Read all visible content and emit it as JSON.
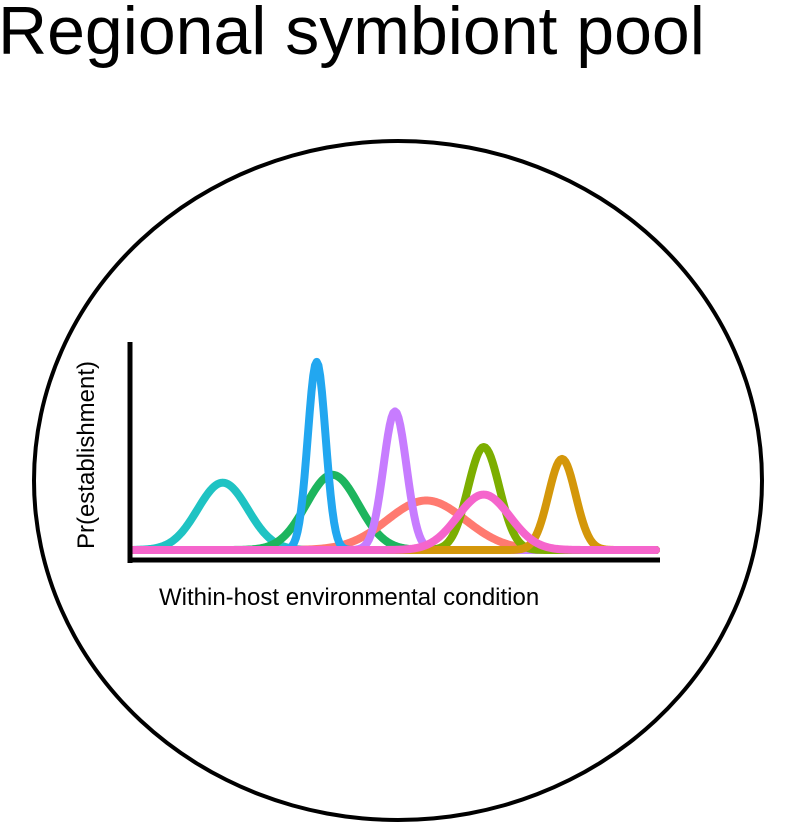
{
  "diagram": {
    "title": "Regional symbiont pool",
    "xlabel": "Within-host environmental condition",
    "ylabel": "Pr(establishment)"
  },
  "chart_data": {
    "type": "line",
    "x_range": [
      0,
      1
    ],
    "y_range": [
      0,
      1
    ],
    "series": [
      {
        "color": "#1FC3C3",
        "mean": 0.17,
        "sd": 0.048,
        "peak": 0.34
      },
      {
        "color": "#1DB55E",
        "mean": 0.38,
        "sd": 0.05,
        "peak": 0.38
      },
      {
        "color": "#FF7A70",
        "mean": 0.56,
        "sd": 0.075,
        "peak": 0.25
      },
      {
        "color": "#22A7F0",
        "mean": 0.35,
        "sd": 0.017,
        "peak": 0.95
      },
      {
        "color": "#C77CFF",
        "mean": 0.5,
        "sd": 0.022,
        "peak": 0.7
      },
      {
        "color": "#7CAE00",
        "mean": 0.67,
        "sd": 0.03,
        "peak": 0.52
      },
      {
        "color": "#D4970A",
        "mean": 0.82,
        "sd": 0.026,
        "peak": 0.46
      },
      {
        "color": "#F565CC",
        "mean": 0.67,
        "sd": 0.05,
        "peak": 0.28
      }
    ]
  }
}
